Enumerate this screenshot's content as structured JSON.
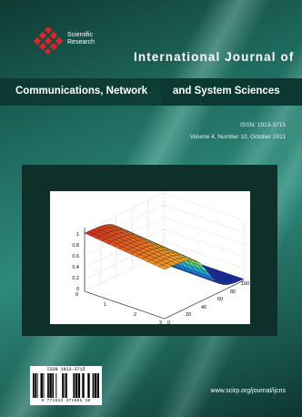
{
  "publisher": {
    "name_line1": "Scientific",
    "name_line2": "Research"
  },
  "journal": {
    "title_line1": "International Journal of",
    "title_part_a": "Communications, Network",
    "title_part_b": "and System Sciences"
  },
  "issue": {
    "issn": "ISSN: 1913-3715",
    "volume": "Volume 4, Number 10, October 2011"
  },
  "figure": {
    "z_ticks": [
      "1",
      "0.8",
      "0.6",
      "0.4",
      "0.2",
      "0"
    ],
    "x_ticks": [
      "0",
      "1",
      "2",
      "3"
    ],
    "y_ticks": [
      "0",
      "20",
      "40",
      "60",
      "80",
      "100"
    ]
  },
  "barcode": {
    "top_text": "ISSN 1913-3715",
    "bottom_text": "9 771913 371005 10"
  },
  "website": "www.scirp.org/journal/ijcns"
}
